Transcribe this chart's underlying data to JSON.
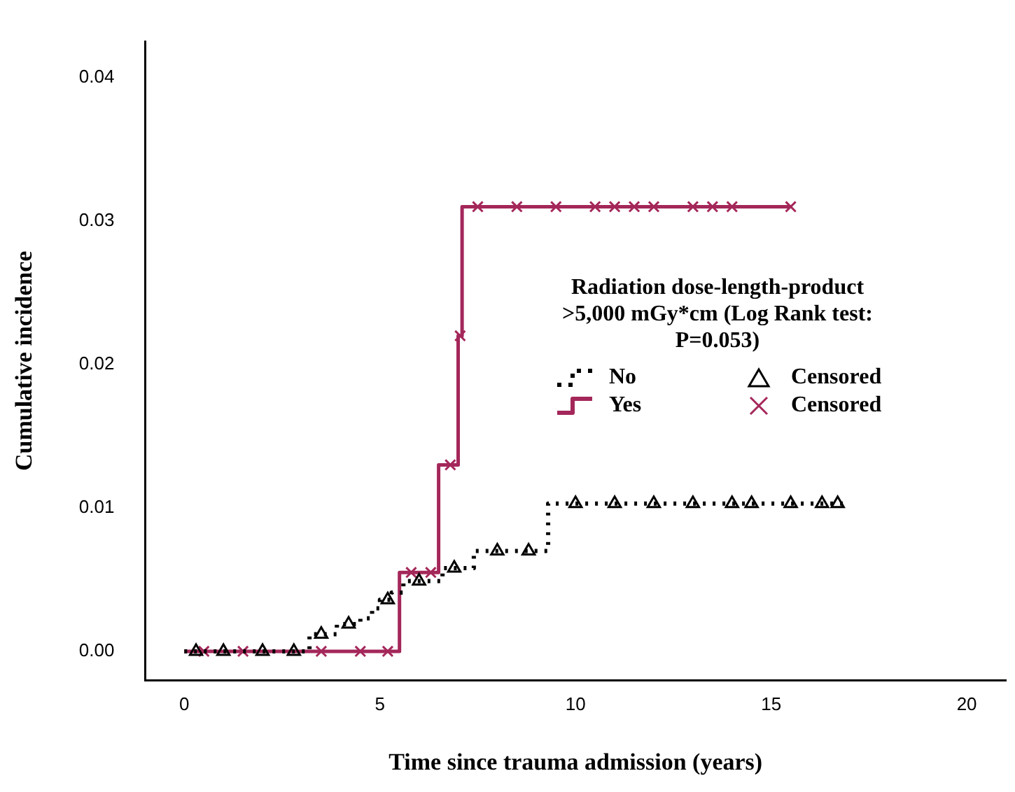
{
  "chart_data": {
    "type": "step",
    "xlabel": "Time since trauma admission (years)",
    "ylabel": "Cumulative incidence",
    "legend_title": "Radiation dose-length-product >5,000 mGy*cm (Log Rank test: P=0.053)",
    "legend": "right",
    "grid": false,
    "xlim": [
      -1,
      21
    ],
    "xticks": [
      0,
      5,
      10,
      15,
      20
    ],
    "ylim": [
      -0.002,
      0.0425
    ],
    "yticks": [
      {
        "value": 0,
        "label": "0.00"
      },
      {
        "value": 0.01,
        "label": "0.01"
      },
      {
        "value": 0.02,
        "label": "0.02"
      },
      {
        "value": 0.03,
        "label": "0.03"
      },
      {
        "value": 0.04,
        "label": "0.04"
      }
    ],
    "series": [
      {
        "name": "No",
        "color": "#000000",
        "line_style": "dotted",
        "x": [
          0,
          3.2,
          3.9,
          4.5,
          4.8,
          5.0,
          5.3,
          5.6,
          6.6,
          7.4,
          9.3,
          16.9
        ],
        "values": [
          0,
          0.0012,
          0.0019,
          0.0023,
          0.003,
          0.0036,
          0.0041,
          0.0049,
          0.0058,
          0.007,
          0.0103,
          0.0103
        ]
      },
      {
        "name": "Censored",
        "type": "scatter",
        "color": "#000000",
        "marker": "triangle",
        "x": [
          0.3,
          1,
          2,
          2.8,
          3.5,
          4.2,
          5.2,
          6.0,
          6.9,
          8.0,
          8.8,
          10,
          11,
          12,
          13,
          14,
          14.5,
          15.5,
          16.3,
          16.7
        ],
        "values": [
          0,
          0,
          0,
          0,
          0.0012,
          0.0019,
          0.0036,
          0.0049,
          0.0058,
          0.007,
          0.007,
          0.0103,
          0.0103,
          0.0103,
          0.0103,
          0.0103,
          0.0103,
          0.0103,
          0.0103,
          0.0103
        ]
      },
      {
        "name": "Yes",
        "color": "#a4275a",
        "line_style": "solid",
        "x": [
          0,
          5.5,
          6.5,
          7.0,
          7.1,
          15.5
        ],
        "values": [
          0,
          0.0055,
          0.013,
          0.022,
          0.031,
          0.031
        ]
      },
      {
        "name": "Censored",
        "type": "scatter",
        "color": "#a4275a",
        "marker": "cross",
        "x": [
          0.5,
          1.5,
          3.5,
          4.5,
          5.2,
          5.8,
          6.3,
          6.8,
          7.05,
          7.5,
          8.5,
          9.5,
          10.5,
          11,
          11.5,
          12,
          13,
          13.5,
          14,
          15.5
        ],
        "values": [
          0,
          0,
          0,
          0,
          0,
          0.0055,
          0.0055,
          0.013,
          0.022,
          0.031,
          0.031,
          0.031,
          0.031,
          0.031,
          0.031,
          0.031,
          0.031,
          0.031,
          0.031,
          0.031
        ]
      }
    ]
  }
}
